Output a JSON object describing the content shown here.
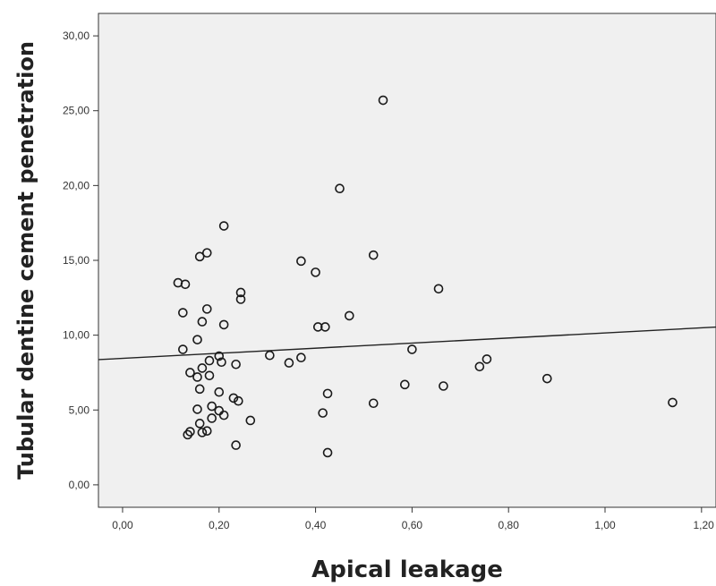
{
  "chart_data": {
    "type": "scatter",
    "xlabel": "Apical leakage",
    "ylabel": "Tubular dentine cement penetration",
    "xlim": [
      -0.05,
      1.23
    ],
    "ylim": [
      -1.5,
      31.5
    ],
    "xticks": [
      0,
      0.2,
      0.4,
      0.6,
      0.8,
      1.0,
      1.2
    ],
    "xtick_labels": [
      "0,00",
      "0,20",
      "0,40",
      "0,60",
      "0,80",
      "1,00",
      "1,20"
    ],
    "yticks": [
      0,
      5,
      10,
      15,
      20,
      25,
      30
    ],
    "ytick_labels": [
      "0,00",
      "5,00",
      "10,00",
      "15,00",
      "20,00",
      "25,00",
      "30,00"
    ],
    "grid": false,
    "fit_line": {
      "intercept": 8.45,
      "slope": 1.7
    },
    "points": [
      [
        0.54,
        25.7
      ],
      [
        0.45,
        19.8
      ],
      [
        0.21,
        17.3
      ],
      [
        0.175,
        15.5
      ],
      [
        0.16,
        15.25
      ],
      [
        0.37,
        14.95
      ],
      [
        0.52,
        15.35
      ],
      [
        0.4,
        14.2
      ],
      [
        0.115,
        13.5
      ],
      [
        0.13,
        13.4
      ],
      [
        0.655,
        13.1
      ],
      [
        0.245,
        12.85
      ],
      [
        0.245,
        12.4
      ],
      [
        0.175,
        11.75
      ],
      [
        0.125,
        11.5
      ],
      [
        0.47,
        11.3
      ],
      [
        0.165,
        10.9
      ],
      [
        0.21,
        10.7
      ],
      [
        0.405,
        10.55
      ],
      [
        0.42,
        10.55
      ],
      [
        0.155,
        9.7
      ],
      [
        0.125,
        9.05
      ],
      [
        0.6,
        9.05
      ],
      [
        0.2,
        8.6
      ],
      [
        0.305,
        8.65
      ],
      [
        0.37,
        8.5
      ],
      [
        0.18,
        8.3
      ],
      [
        0.205,
        8.2
      ],
      [
        0.235,
        8.05
      ],
      [
        0.345,
        8.15
      ],
      [
        0.755,
        8.4
      ],
      [
        0.74,
        7.9
      ],
      [
        0.165,
        7.8
      ],
      [
        0.14,
        7.5
      ],
      [
        0.155,
        7.2
      ],
      [
        0.18,
        7.3
      ],
      [
        0.88,
        7.1
      ],
      [
        0.585,
        6.7
      ],
      [
        0.665,
        6.6
      ],
      [
        0.16,
        6.4
      ],
      [
        0.2,
        6.2
      ],
      [
        0.425,
        6.1
      ],
      [
        0.23,
        5.8
      ],
      [
        0.24,
        5.6
      ],
      [
        1.14,
        5.5
      ],
      [
        0.52,
        5.45
      ],
      [
        0.185,
        5.25
      ],
      [
        0.155,
        5.05
      ],
      [
        0.2,
        4.95
      ],
      [
        0.415,
        4.8
      ],
      [
        0.21,
        4.65
      ],
      [
        0.185,
        4.45
      ],
      [
        0.265,
        4.3
      ],
      [
        0.16,
        4.1
      ],
      [
        0.175,
        3.6
      ],
      [
        0.14,
        3.55
      ],
      [
        0.165,
        3.5
      ],
      [
        0.135,
        3.35
      ],
      [
        0.235,
        2.65
      ],
      [
        0.425,
        2.15
      ]
    ]
  }
}
